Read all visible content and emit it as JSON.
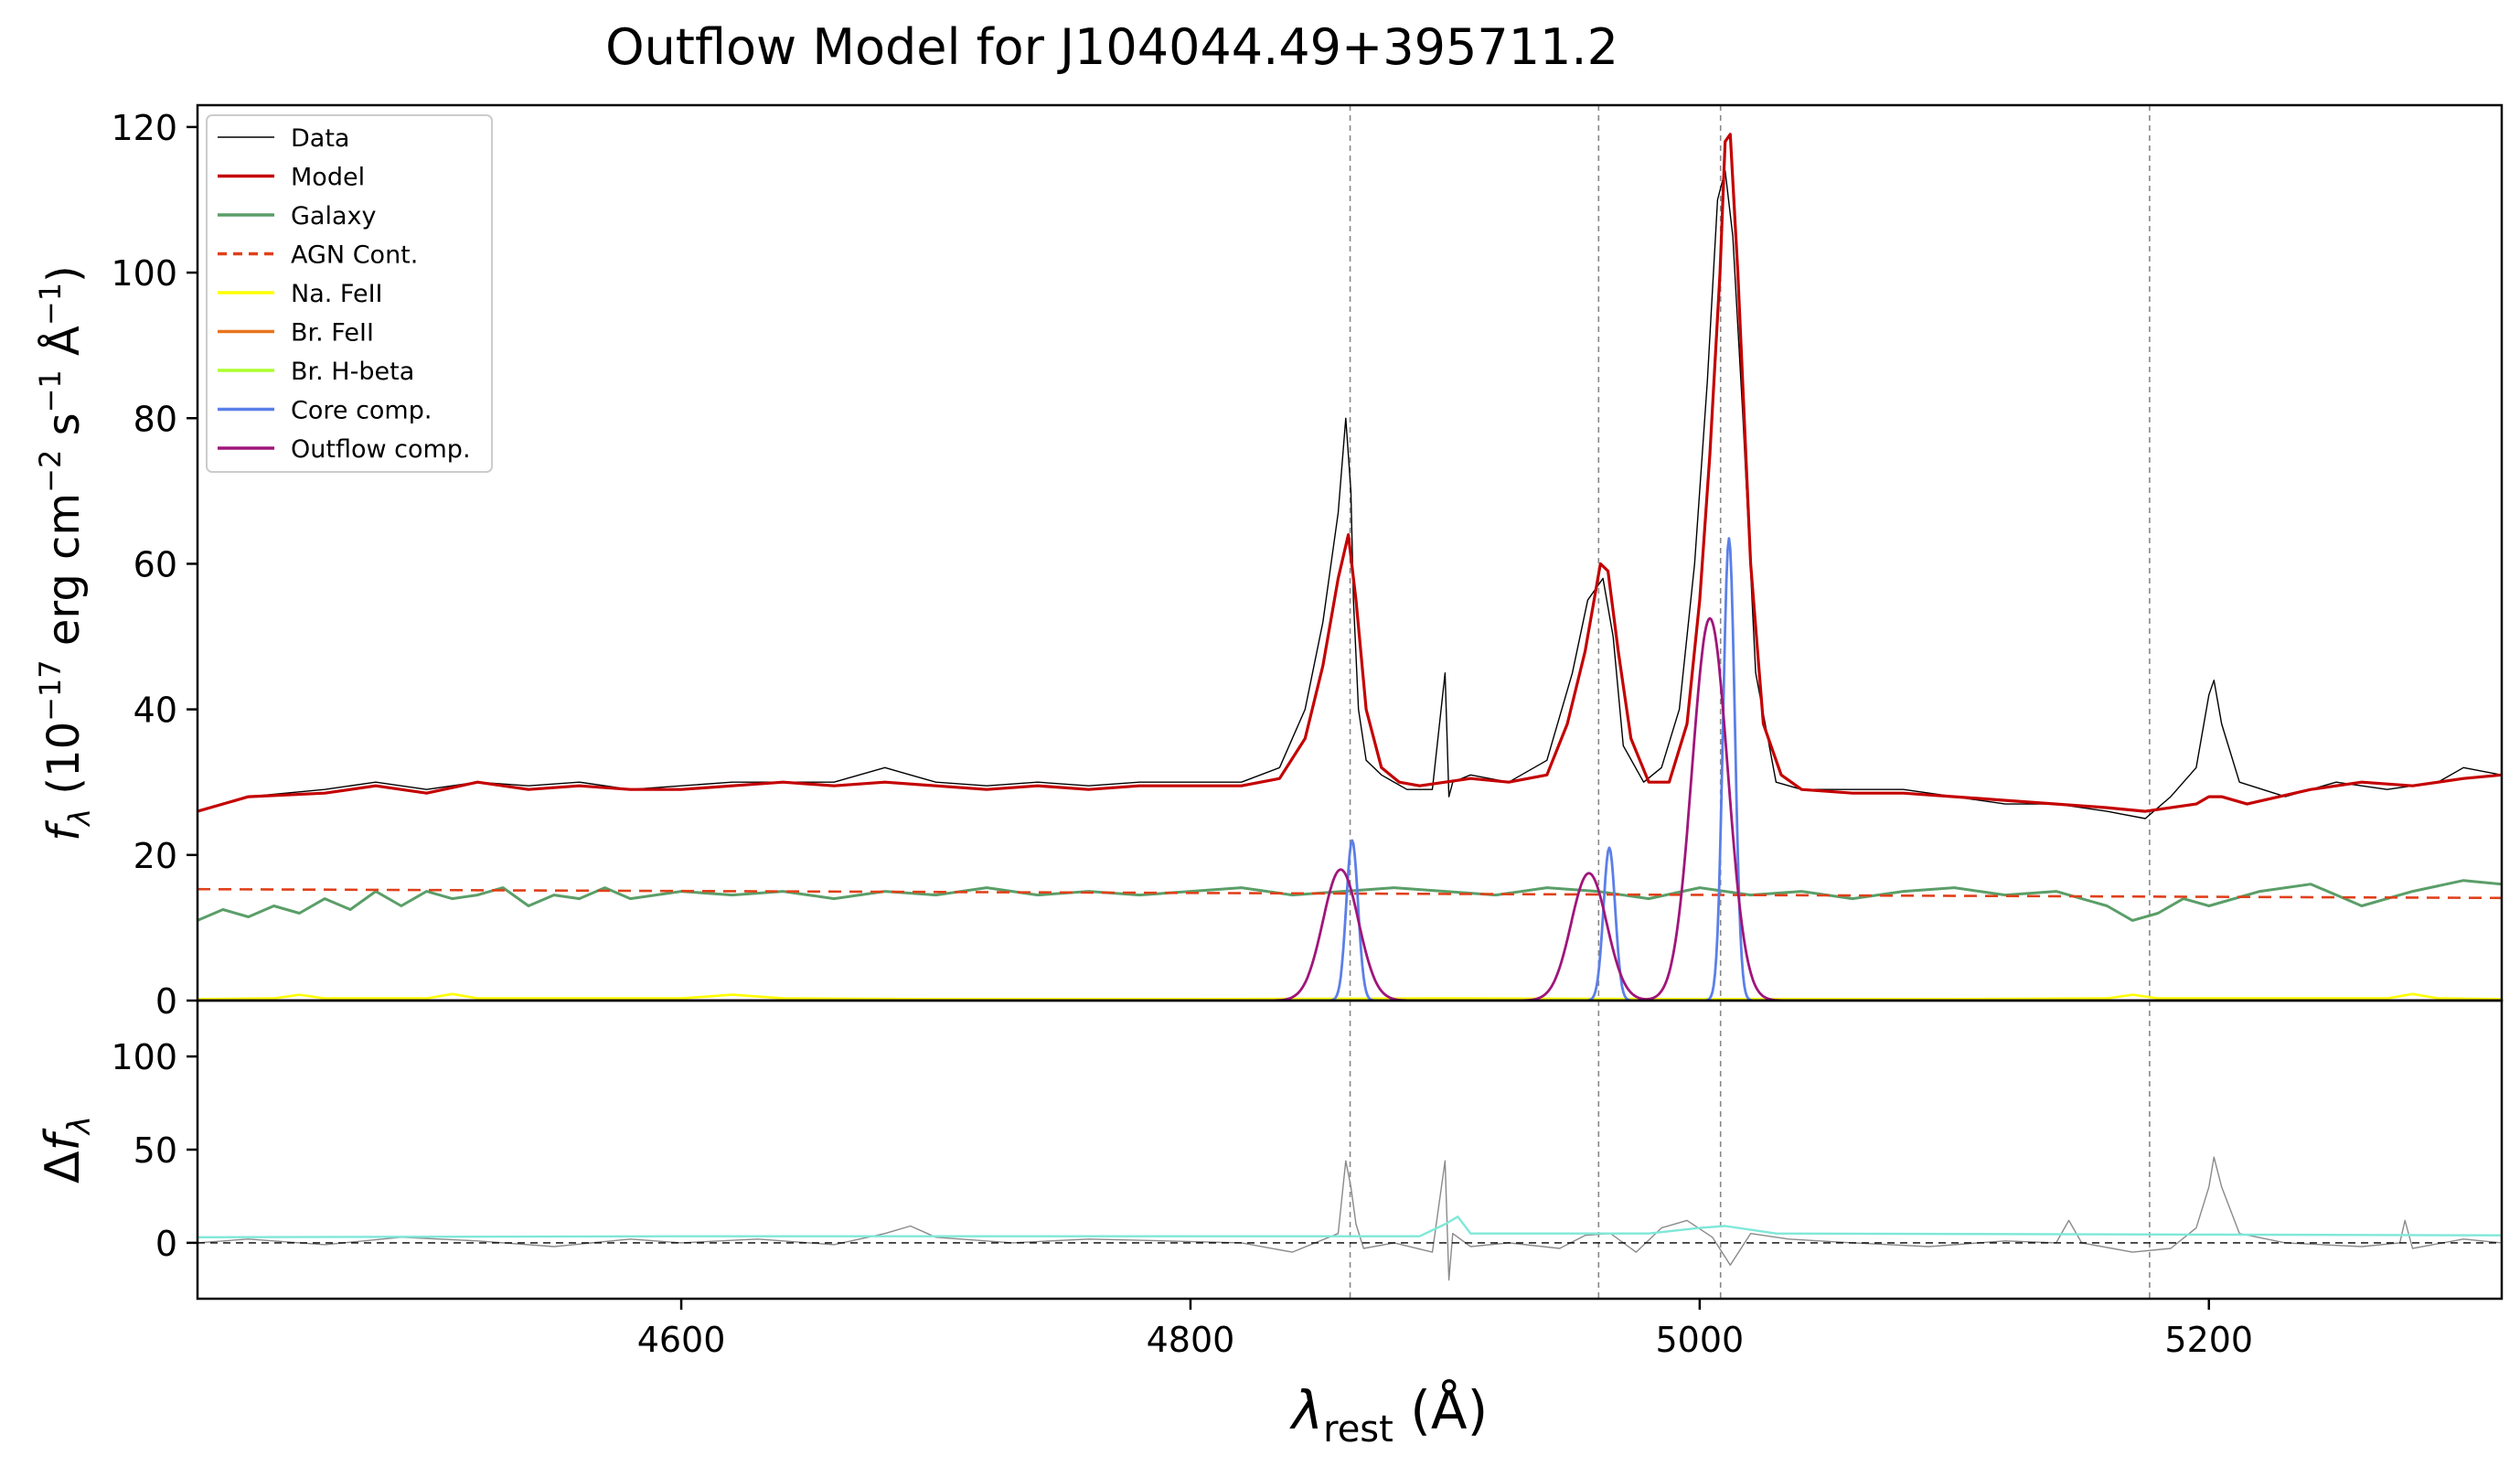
{
  "figure": {
    "title": "Outflow Model for J104044.49+395711.2",
    "colors": {
      "data": "#000000",
      "model": "#c40000",
      "galaxy": "#5a9e68",
      "agn": "#e0401a",
      "na_feii": "#ffff00",
      "br_feii": "#e8741c",
      "br_hbeta": "#adff2f",
      "core": "#5b7fe8",
      "outflow": "#a0157a",
      "residual": "#8a8a8a",
      "noise": "#7fe8d8",
      "vline": "#888888"
    }
  },
  "chart_data": [
    {
      "type": "line",
      "panel": "main",
      "title": "Outflow Model for J104044.49+395711.2",
      "ylabel": "f_λ (10^−17 erg cm^−2 s^−1 Å^−1)",
      "xlim": [
        4410,
        5315
      ],
      "ylim": [
        0,
        123
      ],
      "yticks": [
        0,
        20,
        40,
        60,
        80,
        100,
        120
      ],
      "grid": false,
      "legend_position": "top-left",
      "line_markers": [
        4862.7,
        4960.3,
        5008.2,
        5176.7
      ],
      "series": [
        {
          "name": "Data",
          "key": "data",
          "width": 1.4,
          "x": [
            4410,
            4430,
            4460,
            4480,
            4500,
            4520,
            4540,
            4560,
            4580,
            4600,
            4620,
            4640,
            4660,
            4680,
            4690,
            4700,
            4720,
            4740,
            4760,
            4780,
            4800,
            4820,
            4835,
            4845,
            4852,
            4858,
            4861,
            4863,
            4864,
            4866,
            4869,
            4875,
            4885,
            4895,
            4900,
            4901.5,
            4903,
            4910,
            4925,
            4940,
            4950,
            4956,
            4962,
            4966,
            4970,
            4978,
            4985,
            4992,
            4998,
            5003,
            5007,
            5010,
            5013,
            5017,
            5022,
            5030,
            5040,
            5060,
            5080,
            5100,
            5120,
            5140,
            5160,
            5175,
            5185,
            5195,
            5200,
            5202,
            5205,
            5212,
            5230,
            5250,
            5270,
            5290,
            5300,
            5315
          ],
          "y": [
            26,
            28,
            29,
            30,
            29,
            30,
            29.5,
            30,
            29,
            29.5,
            30,
            30,
            30,
            32,
            31,
            30,
            29.5,
            30,
            29.5,
            30,
            30,
            30,
            32,
            40,
            52,
            67,
            80,
            70,
            55,
            40,
            33,
            31,
            29,
            29,
            45,
            28,
            30,
            31,
            30,
            33,
            45,
            55,
            58,
            50,
            35,
            30,
            32,
            40,
            60,
            85,
            110,
            114,
            105,
            80,
            45,
            30,
            29,
            29,
            29,
            28,
            27,
            27,
            26,
            25,
            28,
            32,
            42,
            44,
            38,
            30,
            28,
            30,
            29,
            30,
            32,
            31
          ]
        },
        {
          "name": "Model",
          "key": "model",
          "width": 3.2,
          "x": [
            4410,
            4430,
            4460,
            4480,
            4500,
            4520,
            4540,
            4560,
            4580,
            4600,
            4620,
            4640,
            4660,
            4680,
            4700,
            4720,
            4740,
            4760,
            4780,
            4800,
            4820,
            4835,
            4845,
            4852,
            4858,
            4862,
            4865,
            4869,
            4875,
            4882,
            4890,
            4900,
            4910,
            4925,
            4940,
            4948,
            4955,
            4961,
            4964,
            4968,
            4973,
            4980,
            4988,
            4995,
            5000,
            5004,
            5008,
            5010,
            5012,
            5015,
            5020,
            5025,
            5032,
            5040,
            5060,
            5080,
            5100,
            5120,
            5140,
            5160,
            5175,
            5185,
            5195,
            5200,
            5205,
            5215,
            5240,
            5260,
            5280,
            5300,
            5315
          ],
          "y": [
            26,
            28,
            28.5,
            29.5,
            28.5,
            30,
            29,
            29.5,
            29,
            29,
            29.5,
            30,
            29.5,
            30,
            29.5,
            29,
            29.5,
            29,
            29.5,
            29.5,
            29.5,
            30.5,
            36,
            46,
            58,
            64,
            55,
            40,
            32,
            30,
            29.5,
            30,
            30.5,
            30,
            31,
            38,
            48,
            60,
            59,
            48,
            36,
            30,
            30,
            38,
            55,
            75,
            100,
            118,
            119,
            100,
            60,
            38,
            31,
            29,
            28.5,
            28.5,
            28,
            27.5,
            27,
            26.5,
            26,
            26.5,
            27,
            28,
            28,
            27,
            29,
            30,
            29.5,
            30.5,
            31
          ]
        },
        {
          "name": "Galaxy",
          "key": "galaxy",
          "width": 3,
          "x": [
            4410,
            4420,
            4430,
            4440,
            4450,
            4460,
            4470,
            4480,
            4490,
            4500,
            4510,
            4520,
            4530,
            4540,
            4550,
            4560,
            4570,
            4580,
            4600,
            4620,
            4640,
            4660,
            4680,
            4700,
            4720,
            4740,
            4760,
            4780,
            4800,
            4820,
            4840,
            4860,
            4880,
            4900,
            4920,
            4940,
            4960,
            4980,
            5000,
            5020,
            5040,
            5060,
            5080,
            5100,
            5120,
            5140,
            5160,
            5170,
            5180,
            5190,
            5200,
            5220,
            5240,
            5260,
            5280,
            5300,
            5315
          ],
          "y": [
            11,
            12.5,
            11.5,
            13,
            12,
            14,
            12.5,
            15,
            13,
            15,
            14,
            14.5,
            15.5,
            13,
            14.5,
            14,
            15.5,
            14,
            15,
            14.5,
            15,
            14,
            15,
            14.5,
            15.5,
            14.5,
            15,
            14.5,
            15,
            15.5,
            14.5,
            15,
            15.5,
            15,
            14.5,
            15.5,
            15,
            14,
            15.5,
            14.5,
            15,
            14,
            15,
            15.5,
            14.5,
            15,
            13,
            11,
            12,
            14,
            13,
            15,
            16,
            13,
            15,
            16.5,
            16
          ]
        },
        {
          "name": "AGN Cont.",
          "key": "agn",
          "width": 2.6,
          "dashed": true,
          "x": [
            4410,
            5315
          ],
          "y": [
            15.3,
            14.1
          ]
        },
        {
          "name": "Na. FeII",
          "key": "na_feii",
          "width": 2.6,
          "x": [
            4410,
            4440,
            4450,
            4460,
            4500,
            4510,
            4520,
            4600,
            4620,
            4640,
            4700,
            4800,
            4900,
            5000,
            5100,
            5160,
            5170,
            5180,
            5270,
            5280,
            5290,
            5315
          ],
          "y": [
            0.2,
            0.3,
            0.8,
            0.3,
            0.3,
            0.9,
            0.3,
            0.3,
            0.8,
            0.3,
            0.2,
            0.2,
            0.3,
            0.2,
            0.2,
            0.3,
            0.8,
            0.3,
            0.3,
            0.9,
            0.3,
            0.2
          ]
        },
        {
          "name": "Br. FeII",
          "key": "br_feii",
          "width": 2.6,
          "x": [
            4410,
            5315
          ],
          "y": [
            0,
            0
          ]
        },
        {
          "name": "Br. H-beta",
          "key": "br_hbeta",
          "width": 2.6,
          "x": [
            4410,
            5315
          ],
          "y": [
            0,
            0
          ]
        },
        {
          "name": "Core comp.",
          "key": "core",
          "width": 2.8,
          "gaussians": [
            {
              "center": 4863.5,
              "amp": 22,
              "sigma": 2.3
            },
            {
              "center": 4964.5,
              "amp": 21,
              "sigma": 2.3
            },
            {
              "center": 5011.5,
              "amp": 63.5,
              "sigma": 2.3
            }
          ]
        },
        {
          "name": "Outflow comp.",
          "key": "outflow",
          "width": 2.8,
          "gaussians": [
            {
              "center": 4859,
              "amp": 18,
              "sigma": 7
            },
            {
              "center": 4956.5,
              "amp": 17.5,
              "sigma": 7
            },
            {
              "center": 5004,
              "amp": 52.5,
              "sigma": 7
            }
          ]
        }
      ]
    },
    {
      "type": "line",
      "panel": "residual",
      "ylabel": "Δf_λ",
      "xlabel": "λ_rest (Å)",
      "xlim": [
        4410,
        5315
      ],
      "ylim": [
        -30,
        130
      ],
      "xticks": [
        4600,
        4800,
        5000,
        5200
      ],
      "yticks": [
        0,
        50,
        100
      ],
      "grid": false,
      "line_markers": [
        4862.7,
        4960.3,
        5008.2,
        5176.7
      ],
      "series": [
        {
          "key": "residual",
          "width": 1.4,
          "x": [
            4410,
            4430,
            4460,
            4490,
            4520,
            4550,
            4580,
            4600,
            4630,
            4660,
            4680,
            4690,
            4700,
            4730,
            4760,
            4790,
            4820,
            4840,
            4858,
            4861,
            4863,
            4865,
            4868,
            4880,
            4895,
            4900,
            4901.5,
            4903,
            4910,
            4925,
            4945,
            4955,
            4965,
            4975,
            4985,
            4995,
            5005,
            5012,
            5020,
            5035,
            5060,
            5090,
            5120,
            5140,
            5145,
            5150,
            5170,
            5185,
            5195,
            5200,
            5202,
            5205,
            5212,
            5230,
            5260,
            5275,
            5277,
            5280,
            5300,
            5315
          ],
          "y": [
            0,
            2,
            -1,
            3,
            1,
            -2,
            2,
            0,
            2,
            -1,
            5,
            9,
            3,
            0,
            2,
            1,
            0,
            -5,
            5,
            44,
            30,
            10,
            -3,
            0,
            -5,
            44,
            -20,
            5,
            -2,
            0,
            -3,
            4,
            5,
            -5,
            8,
            12,
            3,
            -12,
            5,
            2,
            0,
            -2,
            1,
            0,
            12,
            0,
            -5,
            -3,
            8,
            30,
            46,
            30,
            5,
            0,
            -2,
            0,
            12,
            -3,
            2,
            0
          ]
        },
        {
          "key": "noise",
          "width": 2.4,
          "x": [
            4410,
            4600,
            4890,
            4900,
            4905,
            4910,
            4980,
            5000,
            5010,
            5030,
            5315
          ],
          "y": [
            3,
            3.5,
            3.5,
            10,
            14,
            5,
            5,
            8,
            9,
            5,
            4
          ]
        },
        {
          "key": "zero",
          "width": 1.4,
          "dashed": true,
          "x": [
            4410,
            5315
          ],
          "y": [
            0,
            0
          ]
        }
      ]
    }
  ]
}
